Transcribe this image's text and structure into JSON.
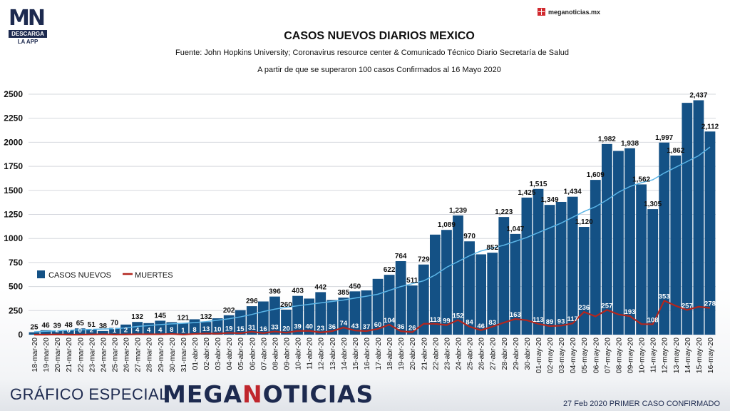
{
  "header": {
    "logo_text": "MN",
    "logo_sub": "DESCARGA",
    "logo_app": "LA APP",
    "site": "meganoticias.mx"
  },
  "chart_data": {
    "type": "bar",
    "title": "CASOS NUEVOS DIARIOS MEXICO",
    "subtitle": "Fuente: John Hopkins University; Coronavirus resource center & Comunicado Técnico Diario Secretaría de Salud",
    "subtitle2": "A partir de que se superaron 100 casos Confirmados al 16 Mayo 2020",
    "ylim": [
      0,
      2500
    ],
    "yticks": [
      "2500",
      "2250",
      "2000",
      "1750",
      "1500",
      "1250",
      "1000",
      "750",
      "500",
      "250",
      "0"
    ],
    "legend_position": "left",
    "colors": {
      "bars": "#145185",
      "deaths": "#b3261e",
      "trend": "#5ab4e6",
      "grid": "#d5d8de"
    },
    "categories": [
      "18-mar-20",
      "19-mar-20",
      "20-mar-20",
      "21-mar-20",
      "22-mar-20",
      "23-mar-20",
      "24-mar-20",
      "25-mar-20",
      "26-mar-20",
      "27-mar-20",
      "28-mar-20",
      "29-mar-20",
      "30-mar-20",
      "31-mar-20",
      "01-abr-20",
      "02-abr-20",
      "03-abr-20",
      "04-abr-20",
      "05-abr-20",
      "06-abr-20",
      "07-abr-20",
      "08-abr-20",
      "09-abr-20",
      "10-abr-20",
      "11-abr-20",
      "12-abr-20",
      "13-abr-20",
      "14-abr-20",
      "15-abr-20",
      "16-abr-20",
      "17-abr-20",
      "18-abr-20",
      "19-abr-20",
      "20-abr-20",
      "21-abr-20",
      "22-abr-20",
      "23-abr-20",
      "24-abr-20",
      "25-abr-20",
      "26-abr-20",
      "27-abr-20",
      "28-abr-20",
      "29-abr-20",
      "30-abr-20",
      "01-may-20",
      "02-may-20",
      "03-may-20",
      "04-may-20",
      "05-may-20",
      "06-may-20",
      "07-may-20",
      "08-may-20",
      "09-may-20",
      "10-may-20",
      "11-may-20",
      "12-may-20",
      "13-may-20",
      "14-may-20",
      "15-may-20",
      "16-may-20"
    ],
    "series": [
      {
        "name": "CASOS NUEVOS",
        "values": [
          25,
          46,
          39,
          48,
          65,
          51,
          38,
          70,
          105,
          132,
          120,
          145,
          130,
          121,
          160,
          132,
          170,
          202,
          255,
          296,
          345,
          396,
          260,
          403,
          375,
          442,
          360,
          385,
          450,
          460,
          580,
          622,
          764,
          511,
          729,
          1040,
          1089,
          1239,
          970,
          835,
          852,
          1223,
          1047,
          1425,
          1515,
          1349,
          1380,
          1434,
          1120,
          1609,
          1982,
          1910,
          1938,
          1562,
          1305,
          1997,
          1862,
          2410,
          2437,
          2112
        ],
        "labels": [
          "25",
          "46",
          "39",
          "48",
          "65",
          "51",
          "38",
          "70",
          "",
          "132",
          "",
          "145",
          "",
          "121",
          "",
          "132",
          "",
          "202",
          "",
          "296",
          "",
          "396",
          "260",
          "403",
          "",
          "442",
          "",
          "385",
          "450",
          "",
          "",
          "622",
          "764",
          "511",
          "729",
          "",
          "1,089",
          "1,239",
          "970",
          "",
          "852",
          "1,223",
          "1,047",
          "1,425",
          "1,515",
          "1,349",
          "",
          "1,434",
          "1,120",
          "1,609",
          "1,982",
          "",
          "1,938",
          "1,562",
          "1,305",
          "1,997",
          "1,862",
          "",
          "2,437",
          "2,112"
        ]
      },
      {
        "name": "MUERTES",
        "values": [
          0,
          0,
          2,
          0,
          0,
          2,
          4,
          1,
          2,
          4,
          4,
          4,
          8,
          1,
          8,
          13,
          10,
          19,
          15,
          31,
          16,
          33,
          20,
          39,
          40,
          23,
          36,
          74,
          43,
          37,
          60,
          104,
          36,
          26,
          113,
          113,
          99,
          152,
          84,
          46,
          83,
          125,
          163,
          150,
          113,
          89,
          93,
          117,
          236,
          190,
          257,
          210,
          193,
          110,
          108,
          353,
          300,
          257,
          290,
          278
        ],
        "labels": [
          "",
          "",
          "2",
          "0",
          "0",
          "2",
          "",
          "1",
          "2",
          "4",
          "4",
          "4",
          "8",
          "1",
          "8",
          "13",
          "10",
          "19",
          "15",
          "31",
          "16",
          "33",
          "20",
          "39",
          "40",
          "23",
          "36",
          "74",
          "43",
          "37",
          "60",
          "104",
          "36",
          "26",
          "",
          "113",
          "99",
          "152",
          "84",
          "46",
          "83",
          "",
          "163",
          "",
          "113",
          "89",
          "93",
          "117",
          "236",
          "",
          "257",
          "",
          "193",
          "",
          "108",
          "353",
          "",
          "257",
          "",
          "278"
        ]
      },
      {
        "name": "trend",
        "values": [
          30,
          35,
          40,
          45,
          50,
          55,
          58,
          62,
          70,
          85,
          95,
          105,
          112,
          118,
          125,
          135,
          150,
          165,
          185,
          210,
          240,
          265,
          285,
          300,
          315,
          330,
          345,
          360,
          380,
          400,
          420,
          460,
          500,
          530,
          560,
          620,
          700,
          760,
          820,
          870,
          900,
          930,
          970,
          1010,
          1060,
          1110,
          1160,
          1220,
          1280,
          1330,
          1400,
          1480,
          1540,
          1580,
          1610,
          1680,
          1740,
          1800,
          1860,
          1950
        ]
      }
    ]
  },
  "footer": {
    "left": "GRÁFICO ESPECIAL",
    "brand_a": "MEGA",
    "brand_n": "N",
    "brand_b": "OTICIAS",
    "right": "27 Feb 2020 PRIMER CASO CONFIRMADO"
  }
}
